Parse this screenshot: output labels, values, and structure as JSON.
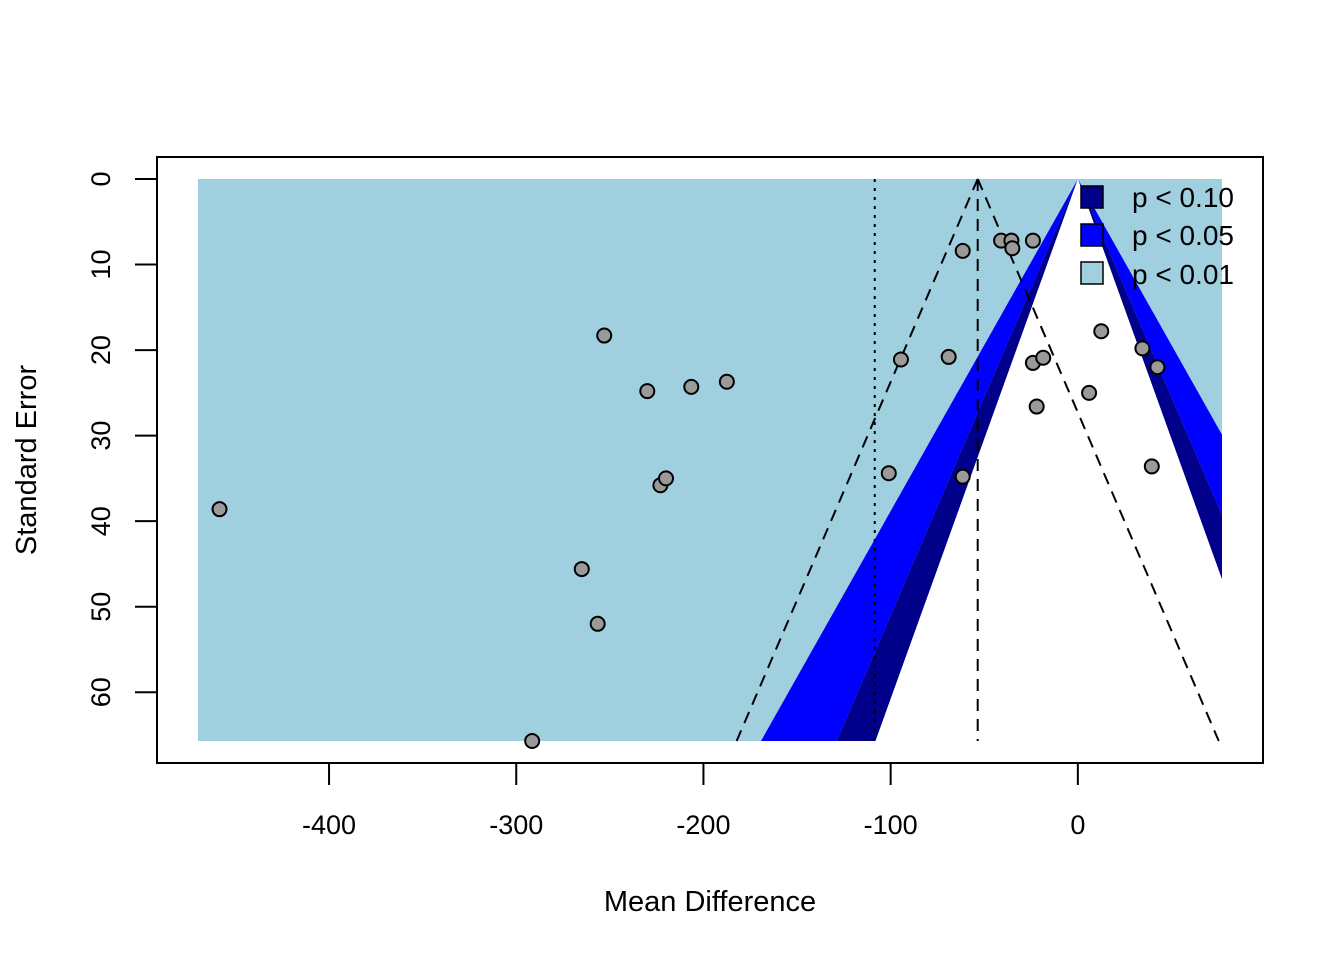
{
  "chart_data": {
    "type": "scatter",
    "subtype": "contour-enhanced funnel plot",
    "xlabel": "Mean Difference",
    "ylabel": "Standard Error",
    "xlim": [
      -470,
      77
    ],
    "ylim": [
      0,
      65.7
    ],
    "y_axis_reversed": true,
    "x_ticks": [
      -400,
      -300,
      -200,
      -100,
      0
    ],
    "y_ticks": [
      0,
      10,
      20,
      30,
      40,
      50,
      60
    ],
    "grid": false,
    "legend_position": "top-right",
    "legend": [
      {
        "label": "p < 0.10",
        "color": "#00008b"
      },
      {
        "label": "p < 0.05",
        "color": "#0000ff"
      },
      {
        "label": "p < 0.01",
        "color": "#a0cfe0"
      }
    ],
    "contours": [
      {
        "level": "p < 0.01",
        "z": 2.576,
        "color": "#a0cfe0"
      },
      {
        "level": "p < 0.05",
        "z": 1.96,
        "color": "#0000ff"
      },
      {
        "level": "p < 0.10",
        "z": 1.645,
        "color": "#00008b"
      }
    ],
    "contour_center": 0,
    "funnel": {
      "center": -53.5,
      "z": 1.96,
      "style": "dashed"
    },
    "reference_line": {
      "x": -108.5,
      "style": "dotted"
    },
    "points": [
      {
        "x": -458.5,
        "y": 38.6
      },
      {
        "x": -291.5,
        "y": 65.7
      },
      {
        "x": -265.0,
        "y": 45.6
      },
      {
        "x": -256.5,
        "y": 52.0
      },
      {
        "x": -253.0,
        "y": 18.3
      },
      {
        "x": -230.0,
        "y": 24.8
      },
      {
        "x": -223.0,
        "y": 35.8
      },
      {
        "x": -220.0,
        "y": 35.0
      },
      {
        "x": -206.5,
        "y": 24.3
      },
      {
        "x": -187.5,
        "y": 23.7
      },
      {
        "x": -101.0,
        "y": 34.4
      },
      {
        "x": -94.5,
        "y": 21.1
      },
      {
        "x": -69.0,
        "y": 20.8
      },
      {
        "x": -61.5,
        "y": 8.4
      },
      {
        "x": -61.5,
        "y": 34.8
      },
      {
        "x": -41.0,
        "y": 7.2
      },
      {
        "x": -35.5,
        "y": 7.2
      },
      {
        "x": -35.0,
        "y": 8.1
      },
      {
        "x": -24.0,
        "y": 7.2
      },
      {
        "x": -24.0,
        "y": 21.5
      },
      {
        "x": -22.0,
        "y": 26.6
      },
      {
        "x": -18.5,
        "y": 20.9
      },
      {
        "x": 6.0,
        "y": 25.0
      },
      {
        "x": 12.5,
        "y": 17.8
      },
      {
        "x": 34.5,
        "y": 19.8
      },
      {
        "x": 39.5,
        "y": 33.6
      },
      {
        "x": 42.5,
        "y": 22.0
      }
    ]
  }
}
